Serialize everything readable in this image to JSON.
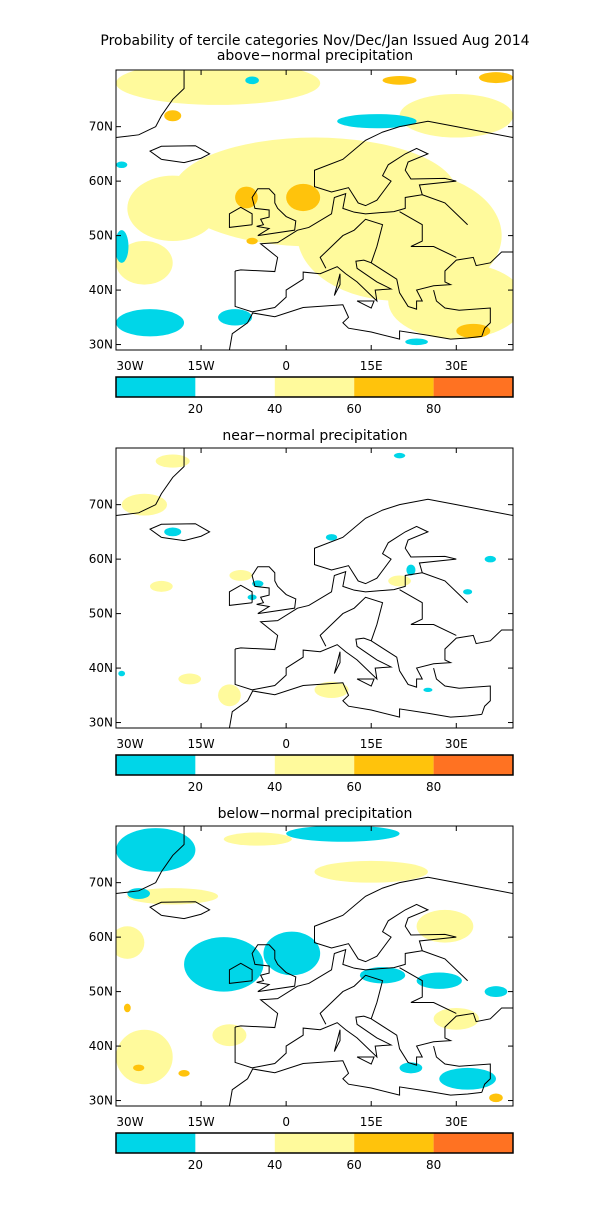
{
  "title": "Probability of tercile categories Nov/Dec/Jan Issued Aug 2014",
  "panels": [
    {
      "subtitle": "above−normal precipitation"
    },
    {
      "subtitle": "near−normal precipitation"
    },
    {
      "subtitle": "below−normal precipitation"
    }
  ],
  "axes": {
    "lon_labels": [
      "30W",
      "15W",
      "0",
      "15E",
      "30E"
    ],
    "lat_labels": [
      "70N",
      "60N",
      "50N",
      "40N",
      "30N"
    ]
  },
  "colorbar": {
    "labels": [
      "20",
      "40",
      "60",
      "80"
    ],
    "colors": [
      "#00d6e8",
      "#ffffff",
      "#fffa9c",
      "#ffc30c",
      "#ff7222"
    ]
  }
}
